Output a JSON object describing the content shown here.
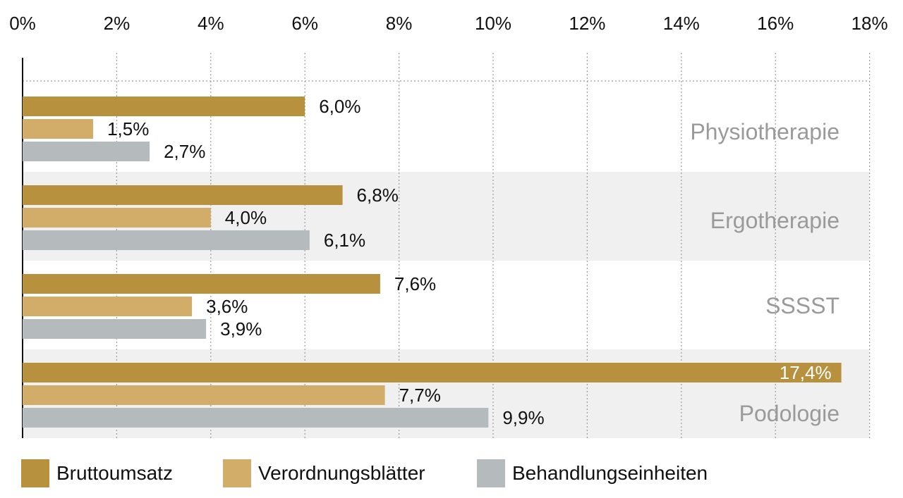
{
  "chart_data": {
    "type": "bar",
    "orientation": "horizontal",
    "categories": [
      "Physiotherapie",
      "Ergotherapie",
      "SSSST",
      "Podologie"
    ],
    "series": [
      {
        "name": "Bruttoumsatz",
        "color": "#b8913f",
        "values": [
          6.0,
          6.8,
          7.6,
          17.4
        ],
        "labels": [
          "6,0%",
          "6,8%",
          "7,6%",
          "17,4%"
        ]
      },
      {
        "name": "Verordnungsblätter",
        "color": "#d2ad6a",
        "values": [
          1.5,
          4.0,
          3.6,
          7.7
        ],
        "labels": [
          "1,5%",
          "4,0%",
          "3,6%",
          "7,7%"
        ]
      },
      {
        "name": "Behandlungseinheiten",
        "color": "#b5babd",
        "values": [
          2.7,
          6.1,
          3.9,
          9.9
        ],
        "labels": [
          "2,7%",
          "6,1%",
          "3,9%",
          "9,9%"
        ]
      }
    ],
    "xlim": [
      0,
      18
    ],
    "xticks": [
      0,
      2,
      4,
      6,
      8,
      10,
      12,
      14,
      16,
      18
    ],
    "xtick_labels": [
      "0%",
      "2%",
      "4%",
      "6%",
      "8%",
      "10%",
      "12%",
      "14%",
      "16%",
      "18%"
    ],
    "xaxis_position": "top",
    "grid": "vertical dotted",
    "band_color": "#f0f0f0",
    "legend_position": "bottom"
  },
  "legend": {
    "items": [
      {
        "label": "Bruttoumsatz",
        "color": "#b8913f"
      },
      {
        "label": "Verordnungsblätter",
        "color": "#d2ad6a"
      },
      {
        "label": "Behandlungseinheiten",
        "color": "#b5babd"
      }
    ]
  }
}
